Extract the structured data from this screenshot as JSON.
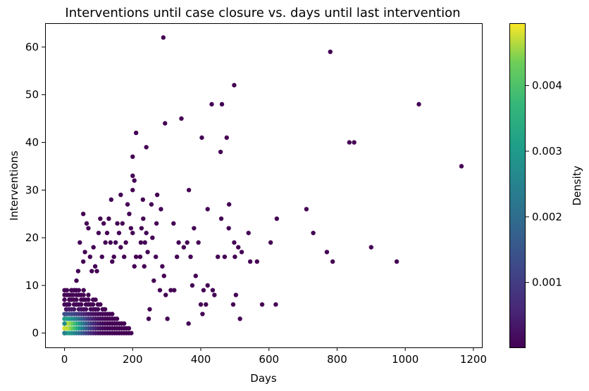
{
  "chart_data": {
    "type": "scatter",
    "title": "Interventions until case closure vs. days until last intervention",
    "xlabel": "Days",
    "ylabel": "Interventions",
    "xlim": [
      -57,
      1225
    ],
    "ylim": [
      -3,
      65
    ],
    "xticks": [
      0,
      200,
      400,
      600,
      800,
      1000,
      1200
    ],
    "yticks": [
      0,
      10,
      20,
      30,
      40,
      50,
      60
    ],
    "grid": false,
    "colormap": "viridis",
    "marker_color_dense": "#fde725",
    "marker_color_sparse": "#440154",
    "colorbar": {
      "label": "Density",
      "min": 1e-05,
      "max": 0.00495,
      "ticks": [
        0.001,
        0.002,
        0.003,
        0.004
      ],
      "tick_labels": [
        "0.001",
        "0.002",
        "0.003",
        "0.004"
      ]
    },
    "points": [
      [
        290,
        62
      ],
      [
        780,
        59
      ],
      [
        498,
        52
      ],
      [
        432,
        48
      ],
      [
        462,
        48
      ],
      [
        1040,
        48
      ],
      [
        343,
        45
      ],
      [
        295,
        44
      ],
      [
        210,
        42
      ],
      [
        403,
        41
      ],
      [
        476,
        41
      ],
      [
        836,
        40
      ],
      [
        850,
        40
      ],
      [
        240,
        39
      ],
      [
        458,
        38
      ],
      [
        200,
        37
      ],
      [
        1165,
        35
      ],
      [
        200,
        33
      ],
      [
        205,
        32
      ],
      [
        200,
        30
      ],
      [
        365,
        30
      ],
      [
        165,
        29
      ],
      [
        272,
        29
      ],
      [
        185,
        27
      ],
      [
        255,
        27
      ],
      [
        483,
        27
      ],
      [
        230,
        28
      ],
      [
        137,
        28
      ],
      [
        710,
        26
      ],
      [
        420,
        26
      ],
      [
        283,
        26
      ],
      [
        55,
        25
      ],
      [
        623,
        24
      ],
      [
        270,
        23
      ],
      [
        320,
        23
      ],
      [
        460,
        24
      ],
      [
        730,
        21
      ],
      [
        540,
        21
      ],
      [
        482,
        22
      ],
      [
        380,
        22
      ],
      [
        770,
        17
      ],
      [
        900,
        18
      ],
      [
        975,
        15
      ],
      [
        787,
        15
      ],
      [
        605,
        19
      ],
      [
        620,
        6
      ],
      [
        580,
        6
      ],
      [
        565,
        15
      ],
      [
        545,
        15
      ],
      [
        520,
        17
      ],
      [
        510,
        18
      ],
      [
        500,
        16
      ],
      [
        498,
        19
      ],
      [
        515,
        3
      ],
      [
        503,
        8
      ],
      [
        495,
        6
      ],
      [
        470,
        16
      ],
      [
        450,
        16
      ],
      [
        440,
        8
      ],
      [
        435,
        9
      ],
      [
        420,
        10
      ],
      [
        415,
        6
      ],
      [
        408,
        9
      ],
      [
        405,
        4
      ],
      [
        400,
        6
      ],
      [
        393,
        19
      ],
      [
        385,
        12
      ],
      [
        375,
        10
      ],
      [
        370,
        16
      ],
      [
        364,
        2
      ],
      [
        360,
        19
      ],
      [
        350,
        18
      ],
      [
        335,
        19
      ],
      [
        330,
        16
      ],
      [
        322,
        9
      ],
      [
        312,
        9
      ],
      [
        302,
        3
      ],
      [
        297,
        8
      ],
      [
        292,
        12
      ],
      [
        287,
        14
      ],
      [
        280,
        9
      ],
      [
        268,
        16
      ],
      [
        262,
        11
      ],
      [
        258,
        20
      ],
      [
        250,
        5
      ],
      [
        247,
        3
      ],
      [
        244,
        17
      ],
      [
        240,
        21
      ],
      [
        236,
        19
      ],
      [
        234,
        14
      ],
      [
        231,
        24
      ],
      [
        226,
        22
      ],
      [
        224,
        19
      ],
      [
        222,
        16
      ],
      [
        210,
        16
      ],
      [
        205,
        14
      ],
      [
        200,
        21
      ],
      [
        195,
        22
      ],
      [
        190,
        25
      ],
      [
        180,
        19
      ],
      [
        175,
        16
      ],
      [
        170,
        23
      ],
      [
        165,
        18
      ],
      [
        160,
        21
      ],
      [
        155,
        23
      ],
      [
        150,
        19
      ],
      [
        145,
        16
      ],
      [
        140,
        15
      ],
      [
        135,
        19
      ],
      [
        130,
        24
      ],
      [
        125,
        21
      ],
      [
        120,
        19
      ],
      [
        115,
        23
      ],
      [
        110,
        16
      ],
      [
        105,
        24
      ],
      [
        100,
        21
      ],
      [
        95,
        13
      ],
      [
        90,
        14
      ],
      [
        85,
        18
      ],
      [
        80,
        13
      ],
      [
        75,
        16
      ],
      [
        70,
        22
      ],
      [
        65,
        23
      ],
      [
        60,
        17
      ],
      [
        55,
        15
      ],
      [
        45,
        19
      ],
      [
        40,
        13
      ],
      [
        35,
        11
      ],
      [
        30,
        9
      ],
      [
        25,
        8
      ],
      [
        20,
        9
      ],
      [
        15,
        7
      ],
      [
        10,
        6
      ],
      [
        5,
        5
      ],
      [
        2,
        4
      ],
      [
        0,
        3
      ],
      [
        0,
        1
      ],
      [
        0,
        0
      ]
    ]
  }
}
